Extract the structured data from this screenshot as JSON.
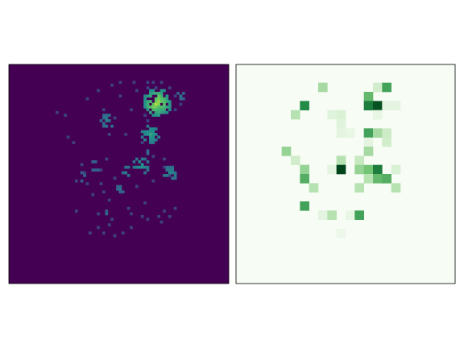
{
  "chart_data": [
    {
      "type": "heatmap",
      "colormap": "viridis",
      "title": "",
      "xlabel": "",
      "ylabel": "",
      "ticks": "none",
      "background_color": "#440154",
      "grid": {
        "cols": 80,
        "rows": 80
      },
      "value_range": [
        0,
        1
      ],
      "cells": [
        [
          50,
          6,
          0.2
        ],
        [
          52,
          6,
          0.2
        ],
        [
          55,
          6,
          0.2
        ],
        [
          40,
          6,
          0.2
        ],
        [
          45,
          6,
          0.2
        ],
        [
          37,
          7,
          0.2
        ],
        [
          50,
          8,
          0.2
        ],
        [
          53,
          8,
          0.2
        ],
        [
          58,
          8,
          0.2
        ],
        [
          32,
          9,
          0.2
        ],
        [
          46,
          9,
          0.2
        ],
        [
          40,
          11,
          0.2
        ],
        [
          60,
          11,
          0.2
        ],
        [
          28,
          12,
          0.2
        ],
        [
          20,
          18,
          0.2
        ],
        [
          49,
          18,
          0.2
        ],
        [
          62,
          14,
          0.2
        ],
        [
          36,
          25,
          0.2
        ],
        [
          42,
          25,
          0.2
        ],
        [
          38,
          19,
          0.2
        ],
        [
          50,
          20,
          0.2
        ],
        [
          23,
          28,
          0.2
        ],
        [
          48,
          28,
          0.2
        ],
        [
          26,
          36,
          0.2
        ],
        [
          35,
          34,
          0.2
        ],
        [
          56,
          34,
          0.2
        ],
        [
          46,
          37,
          0.2
        ],
        [
          33,
          38,
          0.2
        ],
        [
          27,
          39,
          0.2
        ],
        [
          24,
          42,
          0.2
        ],
        [
          58,
          40,
          0.2
        ],
        [
          52,
          42,
          0.2
        ],
        [
          40,
          44,
          0.2
        ],
        [
          46,
          44,
          0.2
        ],
        [
          34,
          46,
          0.2
        ],
        [
          24,
          53,
          0.2
        ],
        [
          32,
          54,
          0.2
        ],
        [
          37,
          56,
          0.2
        ],
        [
          44,
          54,
          0.2
        ],
        [
          50,
          56,
          0.2
        ],
        [
          56,
          53,
          0.2
        ],
        [
          36,
          58,
          0.2
        ],
        [
          32,
          59,
          0.2
        ],
        [
          44,
          59,
          0.2
        ],
        [
          54,
          55,
          0.2
        ],
        [
          48,
          55,
          0.2
        ],
        [
          41,
          61,
          0.2
        ],
        [
          29,
          61,
          0.2
        ],
        [
          34,
          61,
          0.2
        ],
        [
          38,
          62,
          0.2
        ],
        [
          55,
          57,
          0.2
        ],
        [
          58,
          55,
          0.2
        ],
        [
          60,
          52,
          0.2
        ],
        [
          17,
          17,
          0.2
        ],
        [
          21,
          26,
          0.2
        ],
        [
          44,
          16,
          0.2
        ],
        [
          52,
          33,
          0.2
        ],
        [
          56,
          37,
          0.2
        ],
        [
          49,
          50,
          0.2
        ],
        [
          43,
          52,
          0.2
        ],
        [
          36,
          49,
          0.2
        ],
        [
          30,
          47,
          0.2
        ],
        [
          28,
          43,
          0.2
        ],
        [
          33,
          43,
          0.2
        ],
        [
          38,
          41,
          0.2
        ],
        [
          41,
          39,
          0.2
        ],
        [
          34,
          16,
          0.2
        ],
        [
          60,
          16,
          0.2
        ]
      ],
      "blobs": [
        {
          "cx": 53.5,
          "cy": 13.5,
          "r": 5.5,
          "seed": 11,
          "fill": 0.9,
          "base": 0.45,
          "peak": 1.0
        },
        {
          "cx": 51,
          "cy": 25,
          "r": 3.5,
          "seed": 23,
          "fill": 0.75,
          "base": 0.4,
          "peak": 0.6
        },
        {
          "cx": 35.5,
          "cy": 20,
          "r": 2.5,
          "seed": 31,
          "fill": 0.7,
          "base": 0.35,
          "peak": 0.45
        },
        {
          "cx": 47.5,
          "cy": 36.5,
          "r": 3.5,
          "seed": 41,
          "fill": 0.6,
          "base": 0.35,
          "peak": 0.55
        },
        {
          "cx": 58,
          "cy": 39.5,
          "r": 3,
          "seed": 43,
          "fill": 0.6,
          "base": 0.35,
          "peak": 0.5
        },
        {
          "cx": 42.5,
          "cy": 38.5,
          "r": 2,
          "seed": 47,
          "fill": 0.6,
          "base": 0.35,
          "peak": 0.45
        },
        {
          "cx": 40,
          "cy": 45,
          "r": 1.5,
          "seed": 53,
          "fill": 0.6,
          "base": 0.3,
          "peak": 0.4
        },
        {
          "cx": 31,
          "cy": 36.5,
          "r": 2,
          "seed": 59,
          "fill": 0.55,
          "base": 0.3,
          "peak": 0.4
        },
        {
          "cx": 26,
          "cy": 40.5,
          "r": 1.5,
          "seed": 61,
          "fill": 0.5,
          "base": 0.3,
          "peak": 0.4
        },
        {
          "cx": 62,
          "cy": 11,
          "r": 1.5,
          "seed": 67,
          "fill": 0.55,
          "base": 0.3,
          "peak": 0.45
        },
        {
          "cx": 50.5,
          "cy": 31.5,
          "r": 1.5,
          "seed": 71,
          "fill": 0.5,
          "base": 0.3,
          "peak": 0.4
        },
        {
          "cx": 36,
          "cy": 54.5,
          "r": 2,
          "seed": 73,
          "fill": 0.4,
          "base": 0.3,
          "peak": 0.4
        }
      ]
    },
    {
      "type": "heatmap",
      "colormap": "Greens",
      "title": "",
      "xlabel": "",
      "ylabel": "",
      "ticks": "none",
      "grid": {
        "cols": 24,
        "rows": 24
      },
      "value_range": [
        0,
        1
      ],
      "cells": [
        [
          9,
          2,
          0.35
        ],
        [
          15,
          2,
          0.2
        ],
        [
          16,
          2,
          0.65
        ],
        [
          14,
          3,
          0.55
        ],
        [
          7,
          4,
          0.75
        ],
        [
          14,
          4,
          0.8
        ],
        [
          15,
          4,
          0.95
        ],
        [
          16,
          4,
          0.1
        ],
        [
          17,
          4,
          0.1
        ],
        [
          6,
          5,
          0.3
        ],
        [
          10,
          5,
          0.12
        ],
        [
          11,
          5,
          0.15
        ],
        [
          15,
          5,
          0.08
        ],
        [
          11,
          6,
          0.12
        ],
        [
          11,
          7,
          0.1
        ],
        [
          12,
          7,
          0.08
        ],
        [
          14,
          7,
          0.65
        ],
        [
          15,
          7,
          0.35
        ],
        [
          16,
          7,
          0.22
        ],
        [
          14,
          8,
          0.1
        ],
        [
          16,
          8,
          0.2
        ],
        [
          5,
          9,
          0.4
        ],
        [
          14,
          9,
          0.35
        ],
        [
          6,
          10,
          0.2
        ],
        [
          11,
          10,
          0.3
        ],
        [
          13,
          10,
          0.25
        ],
        [
          7,
          11,
          0.4
        ],
        [
          10,
          11,
          0.1
        ],
        [
          11,
          11,
          1.0
        ],
        [
          13,
          11,
          0.4
        ],
        [
          14,
          11,
          0.5
        ],
        [
          15,
          11,
          0.8
        ],
        [
          17,
          11,
          0.15
        ],
        [
          7,
          12,
          0.6
        ],
        [
          14,
          12,
          0.3
        ],
        [
          15,
          12,
          0.55
        ],
        [
          16,
          12,
          0.6
        ],
        [
          8,
          13,
          0.3
        ],
        [
          13,
          13,
          0.3
        ],
        [
          17,
          13,
          0.3
        ],
        [
          7,
          15,
          0.65
        ],
        [
          9,
          16,
          0.1
        ],
        [
          10,
          16,
          0.3
        ],
        [
          12,
          16,
          0.08
        ],
        [
          13,
          16,
          0.65
        ],
        [
          11,
          18,
          0.05
        ]
      ]
    }
  ]
}
